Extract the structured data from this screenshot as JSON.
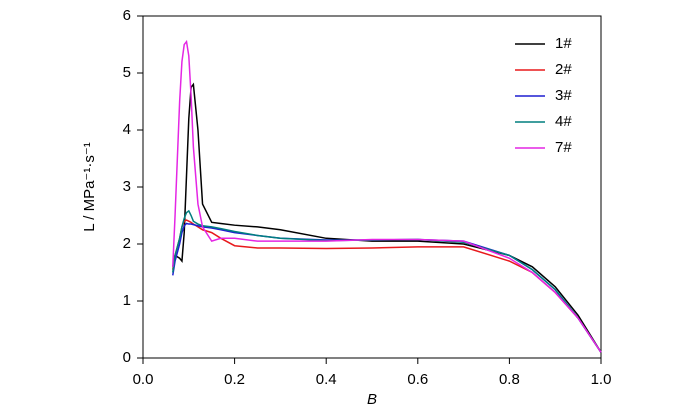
{
  "chart_data": {
    "type": "line",
    "x_label": "B",
    "y_label": "L / MPa⁻¹·s⁻¹",
    "x": [
      0.065,
      0.07,
      0.08,
      0.085,
      0.09,
      0.095,
      0.1,
      0.105,
      0.11,
      0.12,
      0.13,
      0.15,
      0.17,
      0.2,
      0.25,
      0.3,
      0.4,
      0.5,
      0.6,
      0.7,
      0.8,
      0.85,
      0.9,
      0.95,
      1.0
    ],
    "series": [
      {
        "name": "1#",
        "color": "#000000",
        "values": [
          1.6,
          1.8,
          1.75,
          1.7,
          2.2,
          3.2,
          4.2,
          4.75,
          4.8,
          4.0,
          2.7,
          2.38,
          2.36,
          2.33,
          2.3,
          2.25,
          2.1,
          2.05,
          2.05,
          2.0,
          1.8,
          1.6,
          1.25,
          0.75,
          0.1
        ]
      },
      {
        "name": "2#",
        "color": "#e8191c",
        "values": [
          1.55,
          1.8,
          2.1,
          2.3,
          2.4,
          2.42,
          2.4,
          2.38,
          2.35,
          2.3,
          2.25,
          2.2,
          2.1,
          1.97,
          1.93,
          1.93,
          1.92,
          1.93,
          1.95,
          1.95,
          1.7,
          1.5,
          1.15,
          0.7,
          0.1
        ]
      },
      {
        "name": "3#",
        "color": "#1f1fd0",
        "values": [
          1.45,
          1.7,
          2.0,
          2.2,
          2.32,
          2.36,
          2.35,
          2.35,
          2.34,
          2.32,
          2.3,
          2.28,
          2.25,
          2.2,
          2.15,
          2.1,
          2.07,
          2.07,
          2.08,
          2.05,
          1.8,
          1.55,
          1.2,
          0.7,
          0.1
        ]
      },
      {
        "name": "4#",
        "color": "#007f7f",
        "values": [
          1.5,
          1.8,
          2.1,
          2.3,
          2.45,
          2.55,
          2.58,
          2.5,
          2.4,
          2.35,
          2.32,
          2.3,
          2.27,
          2.22,
          2.15,
          2.1,
          2.06,
          2.07,
          2.08,
          2.03,
          1.8,
          1.55,
          1.2,
          0.7,
          0.1
        ]
      },
      {
        "name": "7#",
        "color": "#e426e4",
        "values": [
          1.6,
          2.5,
          4.5,
          5.2,
          5.5,
          5.55,
          5.3,
          4.6,
          3.7,
          2.7,
          2.3,
          2.05,
          2.1,
          2.1,
          2.05,
          2.05,
          2.05,
          2.08,
          2.08,
          2.05,
          1.75,
          1.5,
          1.15,
          0.7,
          0.1
        ]
      }
    ],
    "xlim": [
      0,
      1
    ],
    "xticks": [
      {
        "value": 0,
        "label": "0.0"
      },
      0.2,
      0.4,
      0.6,
      0.8,
      {
        "value": 1,
        "label": "1.0"
      }
    ],
    "ylim": [
      0,
      6
    ],
    "yticks": [
      0,
      1,
      2,
      3,
      4,
      5,
      6
    ],
    "legend": "upper right"
  }
}
